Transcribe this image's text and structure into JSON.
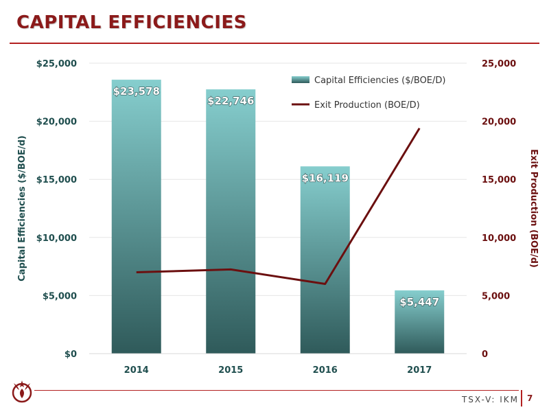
{
  "page": {
    "title": "CAPITAL EFFICIENCIES",
    "ticker": "TSX-V: IKM",
    "page_number": "7"
  },
  "colors": {
    "title": "#8b1a1a",
    "rule": "#b32020",
    "bar_top": "#86cece",
    "bar_bottom": "#2f5a5a",
    "line": "#6b0f0f",
    "left_axis": "#1f4e4e",
    "right_axis": "#6b0f0f"
  },
  "icons": {
    "logo": "phoenix-logo-icon"
  },
  "chart_data": {
    "type": "bar",
    "title": "",
    "categories": [
      "2014",
      "2015",
      "2016",
      "2017"
    ],
    "series": [
      {
        "name": "Capital Efficiencies ($/BOE/D)",
        "type": "bar",
        "axis": "left",
        "values": [
          23578,
          22746,
          16119,
          5447
        ],
        "labels": [
          "$23,578",
          "$22,746",
          "$16,119",
          "$5,447"
        ]
      },
      {
        "name": "Exit Production (BOE/D)",
        "type": "line",
        "axis": "right",
        "values": [
          7000,
          7250,
          6000,
          19400
        ]
      }
    ],
    "ylabel": "Capital Efficiencies ($/BOE/d)",
    "y2label": "Exit Production (BOE/d)",
    "ylim": [
      0,
      25000
    ],
    "y2lim": [
      0,
      25000
    ],
    "yticks": [
      "$0",
      "$5,000",
      "$10,000",
      "$15,000",
      "$20,000",
      "$25,000"
    ],
    "y2ticks": [
      "0",
      "5,000",
      "10,000",
      "15,000",
      "20,000",
      "25,000"
    ],
    "grid": true,
    "legend": "top-right"
  }
}
